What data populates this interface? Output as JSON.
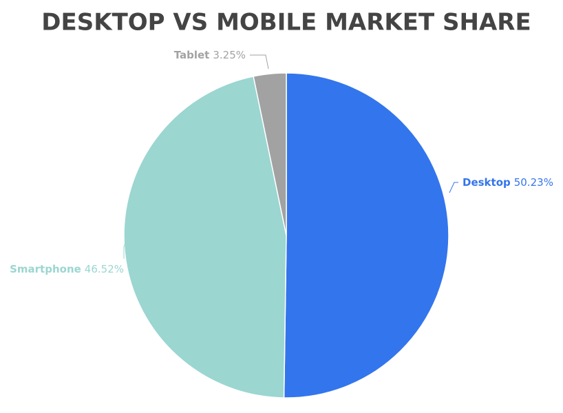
{
  "chart_data": {
    "type": "pie",
    "title": "DESKTOP VS MOBILE MARKET SHARE",
    "categories": [
      "Desktop",
      "Smartphone",
      "Tablet"
    ],
    "values": [
      50.23,
      46.52,
      3.25
    ],
    "value_labels": [
      "50.23%",
      "46.52%",
      "3.25%"
    ],
    "colors": [
      "#3375ec",
      "#9bd6d1",
      "#a2a2a2"
    ]
  }
}
